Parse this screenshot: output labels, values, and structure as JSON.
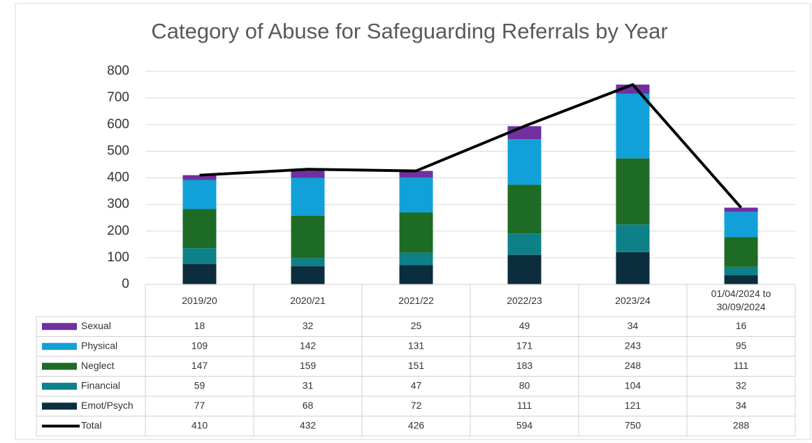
{
  "chart_data": {
    "type": "bar",
    "stacked": true,
    "title": "Category of Abuse for Safeguarding Referrals by Year",
    "categories": [
      "2019/20",
      "2020/21",
      "2021/22",
      "2022/23",
      "2023/24",
      "01/04/2024 to 30/09/2024"
    ],
    "series": [
      {
        "name": "Sexual",
        "color": "#7030a0",
        "values": [
          18,
          32,
          25,
          49,
          34,
          16
        ]
      },
      {
        "name": "Physical",
        "color": "#11a0d8",
        "values": [
          109,
          142,
          131,
          171,
          243,
          95
        ]
      },
      {
        "name": "Neglect",
        "color": "#1e6b25",
        "values": [
          147,
          159,
          151,
          183,
          248,
          111
        ]
      },
      {
        "name": "Financial",
        "color": "#0e8088",
        "values": [
          59,
          31,
          47,
          80,
          104,
          32
        ]
      },
      {
        "name": "Emot/Psych",
        "color": "#0b2d3e",
        "values": [
          77,
          68,
          72,
          111,
          121,
          34
        ]
      },
      {
        "name": "Total",
        "color": "#000000",
        "type": "line",
        "values": [
          410,
          432,
          426,
          594,
          750,
          288
        ]
      }
    ],
    "ylim": [
      0,
      800
    ],
    "yticks": [
      0,
      100,
      200,
      300,
      400,
      500,
      600,
      700,
      800
    ],
    "grid": true,
    "data_table": true
  }
}
